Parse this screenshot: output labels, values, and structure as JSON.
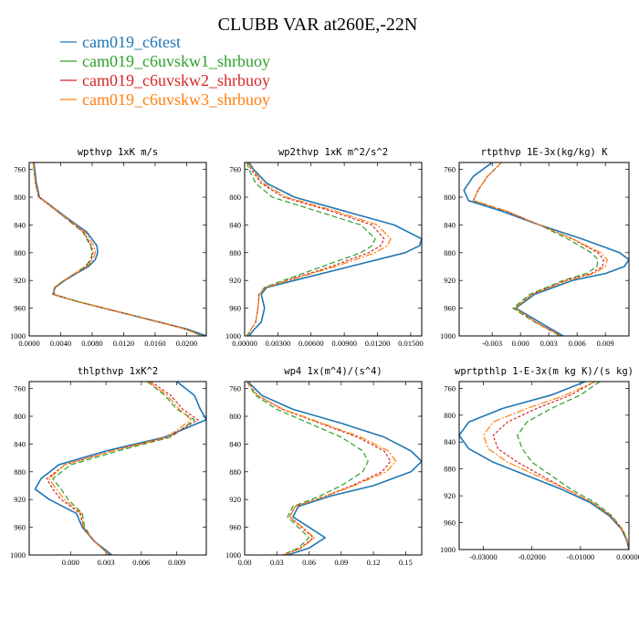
{
  "title": "CLUBB VAR at260E,-22N",
  "legend": [
    {
      "label": "cam019_c6test",
      "color": "#1f77b4",
      "dash": ""
    },
    {
      "label": "cam019_c6uvskw1_shrbuoy",
      "color": "#2ca02c",
      "dash": "6,3"
    },
    {
      "label": "cam019_c6uvskw2_shrbuoy",
      "color": "#d62728",
      "dash": "3,2"
    },
    {
      "label": "cam019_c6uvskw3_shrbuoy",
      "color": "#ff7f0e",
      "dash": "8,2,2,2"
    }
  ],
  "chart_data": [
    {
      "type": "line",
      "title": "wpthvp  1xK m/s",
      "xlim": [
        0,
        0.0225
      ],
      "ylim": [
        1000,
        750
      ],
      "xticks": [
        0,
        0.004,
        0.008,
        0.012,
        0.016,
        0.02
      ],
      "xticklabels": [
        "0.0000",
        "0.0040",
        "0.0080",
        "0.0120",
        "0.0160",
        "0.0200"
      ],
      "yticks": [
        760,
        800,
        840,
        880,
        920,
        960,
        1000
      ],
      "y": [
        750,
        760,
        780,
        800,
        810,
        830,
        850,
        870,
        880,
        890,
        900,
        910,
        920,
        930,
        940,
        950,
        960,
        970,
        980,
        990,
        1000
      ],
      "series": [
        {
          "values": [
            0.0006,
            0.0007,
            0.0009,
            0.0013,
            0.0025,
            0.0048,
            0.0073,
            0.0086,
            0.0087,
            0.0084,
            0.0075,
            0.006,
            0.0045,
            0.0033,
            0.003,
            0.006,
            0.0095,
            0.013,
            0.0165,
            0.02,
            0.0225
          ]
        },
        {
          "values": [
            0.0005,
            0.0006,
            0.0008,
            0.0012,
            0.0024,
            0.0046,
            0.0068,
            0.0078,
            0.008,
            0.0078,
            0.0071,
            0.0058,
            0.0044,
            0.0032,
            0.0032,
            0.006,
            0.0095,
            0.013,
            0.0165,
            0.0198,
            0.022
          ]
        },
        {
          "values": [
            0.0005,
            0.0006,
            0.0008,
            0.0012,
            0.0024,
            0.0046,
            0.0069,
            0.0079,
            0.0081,
            0.0079,
            0.0072,
            0.0058,
            0.0044,
            0.0032,
            0.0031,
            0.006,
            0.0095,
            0.013,
            0.0165,
            0.0198,
            0.022
          ]
        },
        {
          "values": [
            0.0005,
            0.0006,
            0.0008,
            0.0012,
            0.0025,
            0.0047,
            0.0071,
            0.0082,
            0.0084,
            0.0081,
            0.0073,
            0.0059,
            0.0044,
            0.0032,
            0.003,
            0.006,
            0.0095,
            0.013,
            0.0165,
            0.0198,
            0.022
          ]
        }
      ]
    },
    {
      "type": "line",
      "title": "wp2thvp  1xK m^2/s^2",
      "xlim": [
        0,
        0.016
      ],
      "ylim": [
        1000,
        750
      ],
      "xticks": [
        0,
        0.003,
        0.006,
        0.009,
        0.012,
        0.015
      ],
      "xticklabels": [
        "0.00000",
        "0.00300",
        "0.00600",
        "0.00900",
        "0.01200",
        "0.01500"
      ],
      "yticks": [
        760,
        800,
        840,
        880,
        920,
        960,
        1000
      ],
      "y": [
        750,
        760,
        780,
        800,
        820,
        840,
        860,
        870,
        880,
        900,
        920,
        930,
        940,
        960,
        980,
        990,
        1000
      ],
      "series": [
        {
          "values": [
            0.0004,
            0.0008,
            0.002,
            0.0045,
            0.009,
            0.0135,
            0.016,
            0.0158,
            0.0145,
            0.0095,
            0.0045,
            0.002,
            0.0015,
            0.0018,
            0.0015,
            0.0009,
            0.0004
          ]
        },
        {
          "values": [
            0.0002,
            0.0004,
            0.001,
            0.0025,
            0.0065,
            0.0105,
            0.0118,
            0.0115,
            0.0105,
            0.007,
            0.0035,
            0.0018,
            0.0013,
            0.0012,
            0.001,
            0.0006,
            0.0002
          ]
        },
        {
          "values": [
            0.0003,
            0.0006,
            0.0015,
            0.0035,
            0.0078,
            0.0115,
            0.0126,
            0.0123,
            0.0112,
            0.0078,
            0.0038,
            0.0019,
            0.0013,
            0.0012,
            0.001,
            0.0006,
            0.0003
          ]
        },
        {
          "values": [
            0.0003,
            0.0007,
            0.0017,
            0.0038,
            0.0082,
            0.012,
            0.0132,
            0.0129,
            0.0118,
            0.0082,
            0.004,
            0.0019,
            0.0013,
            0.0012,
            0.001,
            0.0006,
            0.0003
          ]
        }
      ]
    },
    {
      "type": "line",
      "title": "rtpthvp  1E-3x(kg/kg) K",
      "xlim": [
        -0.0065,
        0.0115
      ],
      "ylim": [
        1000,
        750
      ],
      "xticks": [
        -0.003,
        0,
        0.003,
        0.006,
        0.009
      ],
      "xticklabels": [
        "-0.003",
        "0.000",
        "0.003",
        "0.006",
        "0.009"
      ],
      "yticks": [
        760,
        800,
        840,
        880,
        920,
        960,
        1000
      ],
      "y": [
        750,
        770,
        790,
        805,
        820,
        840,
        860,
        880,
        890,
        900,
        910,
        920,
        940,
        960,
        980,
        1000
      ],
      "series": [
        {
          "values": [
            -0.003,
            -0.005,
            -0.006,
            -0.0055,
            -0.002,
            0.002,
            0.0065,
            0.0105,
            0.0115,
            0.011,
            0.009,
            0.0055,
            0.0015,
            -0.0005,
            0.002,
            0.0045
          ]
        },
        {
          "values": [
            -0.002,
            -0.0035,
            -0.0045,
            -0.005,
            -0.0015,
            0.002,
            0.005,
            0.0075,
            0.0082,
            0.0081,
            0.007,
            0.0045,
            0.001,
            -0.0008,
            0.0015,
            0.0042
          ]
        },
        {
          "values": [
            -0.002,
            -0.0035,
            -0.0045,
            -0.005,
            -0.0015,
            0.002,
            0.0055,
            0.0082,
            0.0088,
            0.0087,
            0.0075,
            0.0048,
            0.0012,
            -0.0006,
            0.0016,
            0.0043
          ]
        },
        {
          "values": [
            -0.002,
            -0.0035,
            -0.0045,
            -0.005,
            -0.0015,
            0.002,
            0.0055,
            0.0085,
            0.0092,
            0.009,
            0.0078,
            0.005,
            0.0012,
            -0.0006,
            0.0016,
            0.0043
          ]
        }
      ]
    },
    {
      "type": "line",
      "title": "thlpthvp  1xK^2",
      "xlim": [
        -0.0035,
        0.0115
      ],
      "ylim": [
        1000,
        750
      ],
      "xticks": [
        0,
        0.003,
        0.006,
        0.009
      ],
      "xticklabels": [
        "0.000",
        "0.003",
        "0.006",
        "0.009"
      ],
      "yticks": [
        760,
        800,
        840,
        880,
        920,
        960,
        1000
      ],
      "y": [
        750,
        770,
        790,
        805,
        830,
        850,
        870,
        890,
        905,
        920,
        940,
        960,
        980,
        1000
      ],
      "series": [
        {
          "values": [
            0.009,
            0.0105,
            0.011,
            0.0115,
            0.008,
            0.003,
            -0.001,
            -0.0025,
            -0.003,
            -0.0018,
            0.0005,
            0.001,
            0.002,
            0.0035
          ]
        },
        {
          "values": [
            0.0065,
            0.008,
            0.009,
            0.0105,
            0.0085,
            0.004,
            0.0,
            -0.0015,
            -0.0008,
            -0.0002,
            0.001,
            0.0012,
            0.002,
            0.0033
          ]
        },
        {
          "values": [
            0.0068,
            0.0085,
            0.0095,
            0.0108,
            0.0083,
            0.0035,
            -0.0005,
            -0.002,
            -0.0015,
            -0.0008,
            0.0008,
            0.0011,
            0.002,
            0.0033
          ]
        },
        {
          "values": [
            0.0066,
            0.0082,
            0.0092,
            0.0102,
            0.0082,
            0.0035,
            -0.0005,
            -0.0018,
            -0.0012,
            -0.0005,
            0.0009,
            0.0011,
            0.002,
            0.0033
          ]
        }
      ]
    },
    {
      "type": "line",
      "title": "wp4  1x(m^4)/(s^4)",
      "xlim": [
        0,
        0.165
      ],
      "ylim": [
        1000,
        750
      ],
      "xticks": [
        0,
        0.03,
        0.06,
        0.09,
        0.12,
        0.15
      ],
      "xticklabels": [
        "0.00",
        "0.03",
        "0.06",
        "0.09",
        "0.12",
        "0.15"
      ],
      "yticks": [
        760,
        800,
        840,
        880,
        920,
        960,
        1000
      ],
      "y": [
        750,
        770,
        790,
        810,
        830,
        850,
        865,
        880,
        900,
        915,
        930,
        945,
        960,
        975,
        990,
        1000
      ],
      "series": [
        {
          "values": [
            0.003,
            0.016,
            0.045,
            0.09,
            0.13,
            0.155,
            0.165,
            0.155,
            0.12,
            0.08,
            0.05,
            0.045,
            0.06,
            0.075,
            0.06,
            0.04
          ]
        },
        {
          "values": [
            0.002,
            0.01,
            0.03,
            0.06,
            0.09,
            0.11,
            0.115,
            0.11,
            0.09,
            0.07,
            0.045,
            0.04,
            0.05,
            0.06,
            0.05,
            0.035
          ]
        },
        {
          "values": [
            0.002,
            0.012,
            0.035,
            0.07,
            0.105,
            0.13,
            0.136,
            0.128,
            0.1,
            0.075,
            0.047,
            0.042,
            0.053,
            0.064,
            0.052,
            0.036
          ]
        },
        {
          "values": [
            0.002,
            0.012,
            0.036,
            0.072,
            0.108,
            0.134,
            0.141,
            0.132,
            0.102,
            0.076,
            0.047,
            0.042,
            0.054,
            0.065,
            0.053,
            0.037
          ]
        }
      ]
    },
    {
      "type": "line",
      "title": "wprtpthlp  1-E-3x(m kg K)/(s kg)",
      "xlim": [
        -0.035,
        0.0
      ],
      "ylim": [
        1000,
        750
      ],
      "xticks": [
        -0.03,
        -0.02,
        -0.01,
        0.0
      ],
      "xticklabels": [
        "-0.03000",
        "-0.02000",
        "-0.01000",
        "0.00000"
      ],
      "yticks": [
        760,
        800,
        840,
        880,
        920,
        960,
        1000
      ],
      "y": [
        750,
        770,
        790,
        810,
        830,
        850,
        870,
        890,
        910,
        930,
        950,
        970,
        985,
        1000
      ],
      "series": [
        {
          "values": [
            -0.009,
            -0.016,
            -0.026,
            -0.033,
            -0.035,
            -0.033,
            -0.028,
            -0.021,
            -0.014,
            -0.008,
            -0.004,
            -0.0015,
            -0.0005,
            0.0
          ]
        },
        {
          "values": [
            -0.006,
            -0.01,
            -0.016,
            -0.021,
            -0.023,
            -0.022,
            -0.02,
            -0.016,
            -0.012,
            -0.007,
            -0.0035,
            -0.0013,
            -0.0004,
            0.0
          ]
        },
        {
          "values": [
            -0.007,
            -0.012,
            -0.019,
            -0.025,
            -0.028,
            -0.027,
            -0.023,
            -0.018,
            -0.013,
            -0.0075,
            -0.0037,
            -0.0014,
            -0.0004,
            0.0
          ]
        },
        {
          "values": [
            -0.007,
            -0.013,
            -0.021,
            -0.028,
            -0.03,
            -0.029,
            -0.025,
            -0.019,
            -0.013,
            -0.0075,
            -0.0037,
            -0.0014,
            -0.0004,
            0.0
          ]
        }
      ]
    }
  ]
}
